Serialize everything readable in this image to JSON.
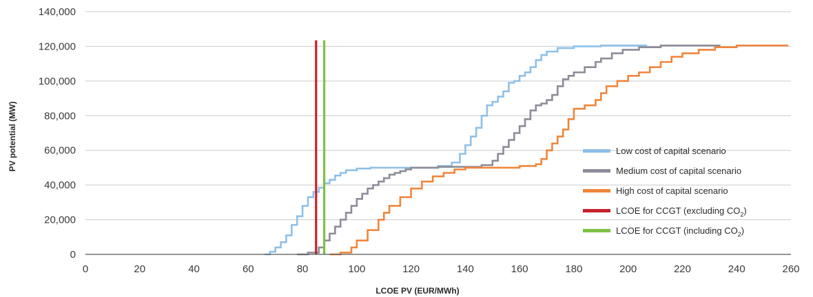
{
  "chart_data": {
    "type": "line",
    "xlabel": "LCOE PV (EUR/MWh)",
    "ylabel": "PV potential (MW)",
    "xlim": [
      0,
      260
    ],
    "ylim": [
      0,
      140000
    ],
    "x_ticks": [
      0,
      20,
      40,
      60,
      80,
      100,
      120,
      140,
      160,
      180,
      200,
      220,
      240,
      260
    ],
    "y_ticks": [
      0,
      20000,
      40000,
      60000,
      80000,
      100000,
      120000,
      140000
    ],
    "y_tick_labels": [
      "0",
      "20,000",
      "40,000",
      "60,000",
      "80,000",
      "100,000",
      "120,000",
      "140,000"
    ],
    "grid": "horizontal",
    "legend_position": "bottom-right",
    "series": [
      {
        "name": "Low cost of capital scenario",
        "color": "#8ec0e8",
        "points": [
          [
            66,
            0
          ],
          [
            68,
            1500
          ],
          [
            70,
            4000
          ],
          [
            72,
            7000
          ],
          [
            74,
            11000
          ],
          [
            76,
            17000
          ],
          [
            78,
            22000
          ],
          [
            80,
            28000
          ],
          [
            82,
            33000
          ],
          [
            84,
            36000
          ],
          [
            86,
            38500
          ],
          [
            88,
            41000
          ],
          [
            90,
            43000
          ],
          [
            92,
            45500
          ],
          [
            94,
            47000
          ],
          [
            96,
            48500
          ],
          [
            100,
            49500
          ],
          [
            105,
            50000
          ],
          [
            110,
            50000
          ],
          [
            120,
            50000
          ],
          [
            130,
            51000
          ],
          [
            135,
            53000
          ],
          [
            138,
            58000
          ],
          [
            140,
            63000
          ],
          [
            142,
            68000
          ],
          [
            144,
            73000
          ],
          [
            146,
            80000
          ],
          [
            148,
            86000
          ],
          [
            150,
            88000
          ],
          [
            152,
            91000
          ],
          [
            154,
            94000
          ],
          [
            156,
            99000
          ],
          [
            158,
            100000
          ],
          [
            160,
            103000
          ],
          [
            162,
            105000
          ],
          [
            164,
            108000
          ],
          [
            166,
            112000
          ],
          [
            168,
            115000
          ],
          [
            170,
            117000
          ],
          [
            174,
            119000
          ],
          [
            180,
            120000
          ],
          [
            190,
            120500
          ],
          [
            207,
            120500
          ]
        ]
      },
      {
        "name": "Medium cost of capital scenario",
        "color": "#8c8c99",
        "points": [
          [
            78,
            0
          ],
          [
            82,
            1000
          ],
          [
            86,
            4000
          ],
          [
            88,
            8000
          ],
          [
            90,
            12000
          ],
          [
            92,
            16000
          ],
          [
            94,
            20000
          ],
          [
            96,
            24000
          ],
          [
            98,
            28000
          ],
          [
            100,
            32000
          ],
          [
            102,
            35000
          ],
          [
            104,
            38000
          ],
          [
            106,
            40000
          ],
          [
            108,
            42000
          ],
          [
            110,
            44000
          ],
          [
            112,
            46000
          ],
          [
            114,
            47000
          ],
          [
            116,
            48000
          ],
          [
            118,
            49000
          ],
          [
            120,
            50000
          ],
          [
            130,
            50500
          ],
          [
            140,
            50500
          ],
          [
            146,
            51500
          ],
          [
            150,
            54000
          ],
          [
            152,
            58000
          ],
          [
            154,
            62000
          ],
          [
            156,
            66000
          ],
          [
            158,
            70000
          ],
          [
            160,
            74000
          ],
          [
            162,
            78000
          ],
          [
            164,
            83000
          ],
          [
            166,
            86000
          ],
          [
            168,
            87000
          ],
          [
            170,
            89000
          ],
          [
            172,
            92000
          ],
          [
            174,
            97000
          ],
          [
            176,
            101000
          ],
          [
            178,
            103000
          ],
          [
            180,
            105000
          ],
          [
            184,
            108000
          ],
          [
            188,
            111000
          ],
          [
            190,
            113000
          ],
          [
            194,
            116000
          ],
          [
            198,
            118000
          ],
          [
            204,
            119500
          ],
          [
            212,
            120500
          ],
          [
            234,
            120500
          ]
        ]
      },
      {
        "name": "High cost of capital scenario",
        "color": "#f0853a",
        "points": [
          [
            90,
            0
          ],
          [
            94,
            1000
          ],
          [
            98,
            4000
          ],
          [
            100,
            8000
          ],
          [
            104,
            14000
          ],
          [
            108,
            20000
          ],
          [
            110,
            24000
          ],
          [
            112,
            28000
          ],
          [
            116,
            33000
          ],
          [
            120,
            38000
          ],
          [
            124,
            42000
          ],
          [
            128,
            45000
          ],
          [
            132,
            47000
          ],
          [
            136,
            49000
          ],
          [
            140,
            50000
          ],
          [
            150,
            50000
          ],
          [
            160,
            51000
          ],
          [
            166,
            52000
          ],
          [
            168,
            55000
          ],
          [
            170,
            60000
          ],
          [
            172,
            64000
          ],
          [
            174,
            68000
          ],
          [
            176,
            72000
          ],
          [
            178,
            78000
          ],
          [
            180,
            84000
          ],
          [
            184,
            86000
          ],
          [
            188,
            89000
          ],
          [
            190,
            93000
          ],
          [
            192,
            97000
          ],
          [
            196,
            100000
          ],
          [
            200,
            103000
          ],
          [
            204,
            105000
          ],
          [
            208,
            108000
          ],
          [
            212,
            111000
          ],
          [
            216,
            114000
          ],
          [
            220,
            116000
          ],
          [
            226,
            118000
          ],
          [
            232,
            119500
          ],
          [
            240,
            120500
          ],
          [
            259,
            120500
          ]
        ]
      }
    ],
    "reference_lines": [
      {
        "name": "LCOE for CCGT (excluding CO",
        "name_sub": "2",
        "name_tail": ")",
        "color": "#c8202b",
        "x": 85,
        "y_top": 123500
      },
      {
        "name": "LCOE for CCGT (including CO",
        "name_sub": "2",
        "name_tail": ")",
        "color": "#7ec044",
        "x": 88,
        "y_top": 123500
      }
    ]
  }
}
